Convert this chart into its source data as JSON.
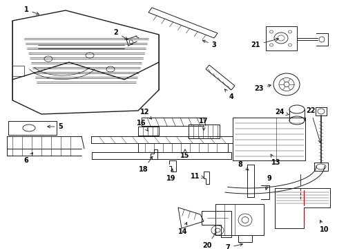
{
  "bg_color": "#ffffff",
  "line_color": "#1a1a1a",
  "red_color": "#cc0000",
  "fig_w": 4.89,
  "fig_h": 3.6,
  "dpi": 100
}
